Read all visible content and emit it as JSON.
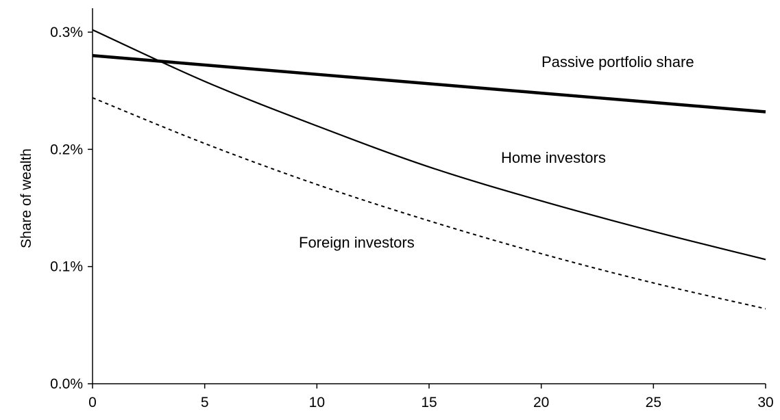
{
  "chart_data": {
    "type": "line",
    "title": "",
    "xlabel": "",
    "ylabel": "Share of wealth",
    "xlim": [
      0,
      30
    ],
    "ylim": [
      0,
      0.3
    ],
    "x_ticks": [
      0,
      5,
      10,
      15,
      20,
      25,
      30
    ],
    "x_tick_labels": [
      "0",
      "5",
      "10",
      "15",
      "20",
      "25",
      "30"
    ],
    "y_ticks": [
      0,
      0.1,
      0.2,
      0.3
    ],
    "y_tick_labels": [
      "0.0%",
      "0.1%",
      "0.2%",
      "0.3%"
    ],
    "grid": false,
    "legend": "none (series labeled inline)",
    "series": [
      {
        "name": "Passive portfolio share",
        "style": "solid-thick",
        "color": "#000000",
        "x": [
          0,
          5,
          10,
          15,
          20,
          25,
          30
        ],
        "values": [
          0.28,
          0.272,
          0.264,
          0.256,
          0.248,
          0.24,
          0.232
        ]
      },
      {
        "name": "Home investors",
        "style": "solid",
        "color": "#000000",
        "x": [
          0,
          5,
          10,
          15,
          20,
          25,
          30
        ],
        "values": [
          0.302,
          0.258,
          0.22,
          0.185,
          0.156,
          0.13,
          0.106
        ]
      },
      {
        "name": "Foreign investors",
        "style": "dashed",
        "color": "#000000",
        "x": [
          0,
          5,
          10,
          15,
          20,
          25,
          30
        ],
        "values": [
          0.244,
          0.205,
          0.17,
          0.139,
          0.111,
          0.086,
          0.064
        ]
      }
    ]
  }
}
